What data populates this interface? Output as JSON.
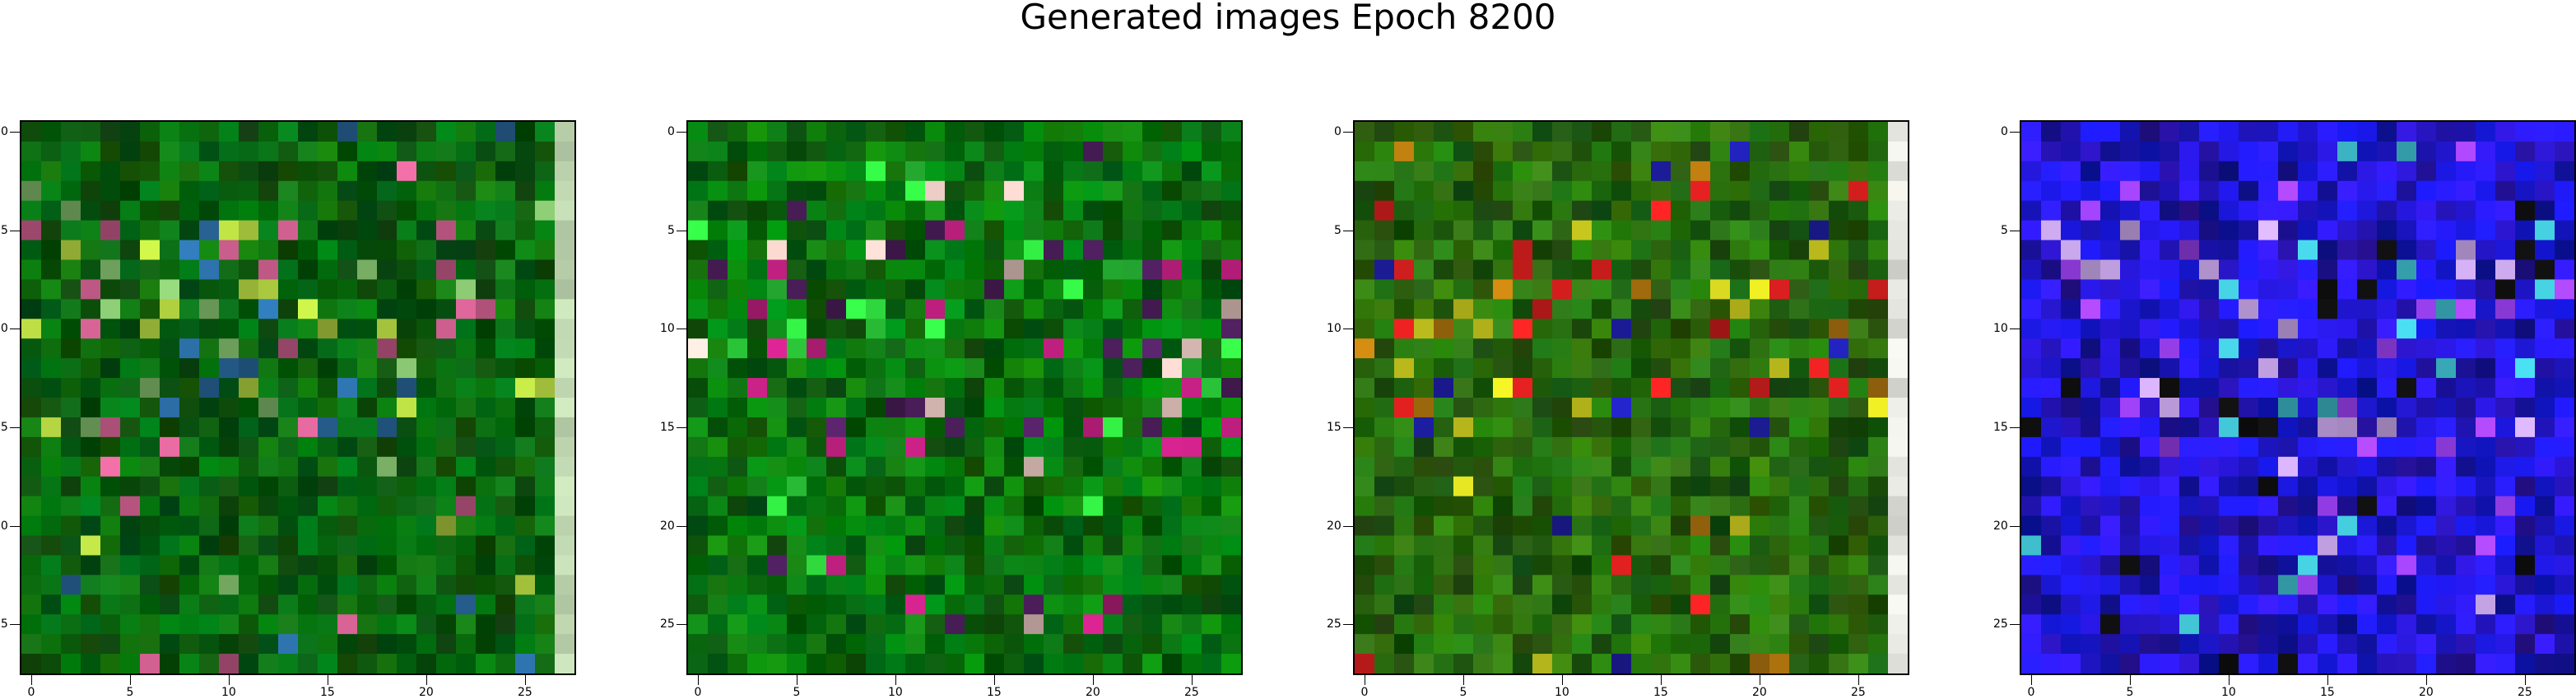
{
  "figure": {
    "title": "Generated images Epoch 8200"
  },
  "chart_data": [
    {
      "type": "heatmap",
      "panel": 1,
      "grid_size": [
        28,
        28
      ],
      "x_ticks": [
        "0",
        "5",
        "10",
        "15",
        "20",
        "25"
      ],
      "y_ticks": [
        "0",
        "5",
        "10",
        "15",
        "20",
        "25"
      ],
      "xlim": [
        -0.5,
        27.5
      ],
      "ylim": [
        27.5,
        -0.5
      ],
      "dominant_color": "#0b6b12",
      "highlight_colors": [
        "#7fb86a",
        "#d06090",
        "#2a6aa0",
        "#b0d040"
      ],
      "right_edge_color": "#c8e0b8"
    },
    {
      "type": "heatmap",
      "panel": 2,
      "grid_size": [
        28,
        28
      ],
      "x_ticks": [
        "0",
        "5",
        "10",
        "15",
        "20",
        "25"
      ],
      "y_ticks": [
        "0",
        "5",
        "10",
        "15",
        "20",
        "25"
      ],
      "xlim": [
        -0.5,
        27.5
      ],
      "ylim": [
        27.5,
        -0.5
      ],
      "dominant_color": "#0a7a10",
      "highlight_colors": [
        "#e8c8c0",
        "#c02080",
        "#30e040",
        "#502060"
      ],
      "right_edge_color": null
    },
    {
      "type": "heatmap",
      "panel": 3,
      "grid_size": [
        28,
        28
      ],
      "x_ticks": [
        "0",
        "5",
        "10",
        "15",
        "20",
        "25"
      ],
      "y_ticks": [
        "0",
        "5",
        "10",
        "15",
        "20",
        "25"
      ],
      "xlim": [
        -0.5,
        27.5
      ],
      "ylim": [
        27.5,
        -0.5
      ],
      "dominant_color": "#2a7010",
      "highlight_colors": [
        "#c08010",
        "#e02020",
        "#d0d020",
        "#2020b0"
      ],
      "right_edge_color": "#eeeee8"
    },
    {
      "type": "heatmap",
      "panel": 4,
      "grid_size": [
        28,
        28
      ],
      "x_ticks": [
        "0",
        "5",
        "10",
        "15",
        "20",
        "25"
      ],
      "y_ticks": [
        "0",
        "5",
        "10",
        "15",
        "20",
        "25"
      ],
      "xlim": [
        -0.5,
        27.5
      ],
      "ylim": [
        27.5,
        -0.5
      ],
      "dominant_color": "#2418e0",
      "highlight_colors": [
        "#9a40f0",
        "#c0a0e0",
        "#40c0d0",
        "#101010"
      ],
      "right_edge_color": null
    }
  ]
}
